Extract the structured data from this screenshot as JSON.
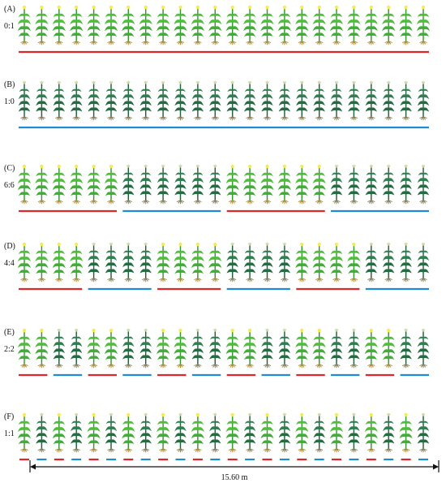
{
  "colors": {
    "light_plant": "#4fbf3a",
    "light_plant_dark": "#2e9a2b",
    "dark_plant": "#2f7f4f",
    "dark_plant_dark": "#1f5f3b",
    "tassel": "#f2ec4a",
    "root": "#b08a2e",
    "red_line": "#e0252b",
    "blue_line": "#1f8ad6",
    "text": "#111111"
  },
  "panels": [
    {
      "letter": "(A)",
      "ratio": "0:1",
      "pattern": "all-light",
      "plants": 24,
      "group_size": 24
    },
    {
      "letter": "(B)",
      "ratio": "1:0",
      "pattern": "all-dark",
      "plants": 24,
      "group_size": 24
    },
    {
      "letter": "(C)",
      "ratio": "6:6",
      "pattern": "alternating",
      "plants": 24,
      "group_size": 6
    },
    {
      "letter": "(D)",
      "ratio": "4:4",
      "pattern": "alternating",
      "plants": 24,
      "group_size": 4
    },
    {
      "letter": "(E)",
      "ratio": "2:2",
      "pattern": "alternating",
      "plants": 24,
      "group_size": 2
    },
    {
      "letter": "(F)",
      "ratio": "1:1",
      "pattern": "alternating",
      "plants": 24,
      "group_size": 1
    }
  ],
  "dimension": {
    "label": "15.60 m"
  }
}
